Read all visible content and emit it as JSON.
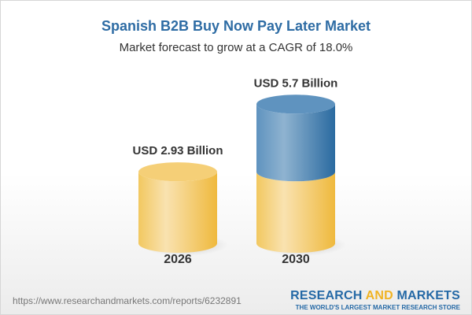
{
  "title": "Spanish B2B Buy Now Pay Later Market",
  "subtitle": "Market forecast to grow at a CAGR of 18.0%",
  "chart_data": {
    "type": "bar",
    "style": "3d-cylinder",
    "categories": [
      "2026",
      "2030"
    ],
    "values": [
      2.93,
      5.7
    ],
    "data_labels": [
      "USD 2.93 Billion",
      "USD 5.7 Billion"
    ],
    "unit": "USD Billion",
    "colors": {
      "base": "#f3c55e",
      "growth": "#3f7bb0"
    },
    "grid": false
  },
  "footer": {
    "url": "https://www.researchandmarkets.com/reports/6232891",
    "logo_part1": "RESEARCH",
    "logo_part2": "AND",
    "logo_part3": "MARKETS",
    "tagline": "THE WORLD'S LARGEST MARKET RESEARCH STORE"
  }
}
